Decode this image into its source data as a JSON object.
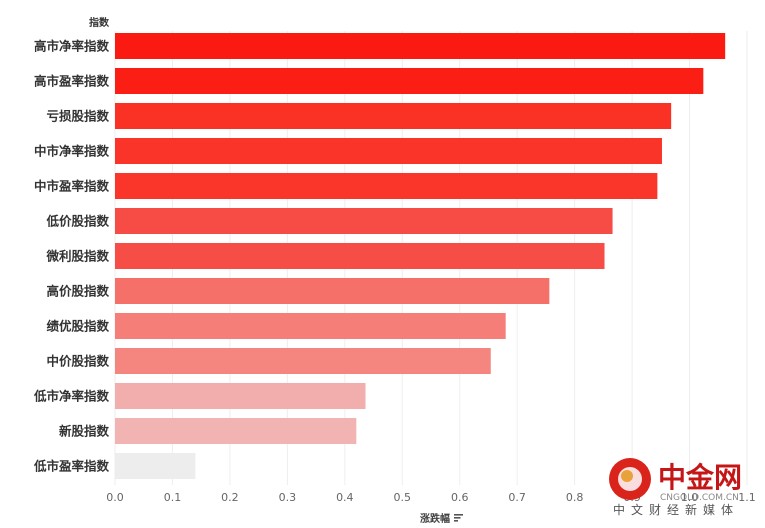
{
  "chart_data": {
    "type": "bar",
    "orientation": "horizontal",
    "ylabel": "指数",
    "xlabel": "涨跌幅",
    "categories": [
      "高市净率指数",
      "高市盈率指数",
      "亏损股指数",
      "中市净率指数",
      "中市盈率指数",
      "低价股指数",
      "微利股指数",
      "高价股指数",
      "绩优股指数",
      "中价股指数",
      "低市净率指数",
      "新股指数",
      "低市盈率指数"
    ],
    "values": [
      1.062,
      1.024,
      0.968,
      0.952,
      0.944,
      0.866,
      0.852,
      0.756,
      0.68,
      0.654,
      0.436,
      0.42,
      0.14
    ],
    "xlim": [
      0,
      1.1
    ],
    "xticks": [
      "0.0",
      "0.1",
      "0.2",
      "0.3",
      "0.4",
      "0.5",
      "0.6",
      "0.7",
      "0.8",
      "0.9",
      "1.0",
      "1.1"
    ],
    "grid": true,
    "colors": [
      "#fb1a12",
      "#fb1e15",
      "#fa3225",
      "#fa3428",
      "#fa352a",
      "#f64c45",
      "#f64e47",
      "#f57069",
      "#f57f78",
      "#f4857f",
      "#f1aeac",
      "#f1b4b3",
      "#ededed"
    ]
  },
  "watermark": {
    "title": "中金网",
    "url": "CNGOLD.COM.CN",
    "subtitle": "中文财经新媒体",
    "logo_color": "#d9231b"
  }
}
